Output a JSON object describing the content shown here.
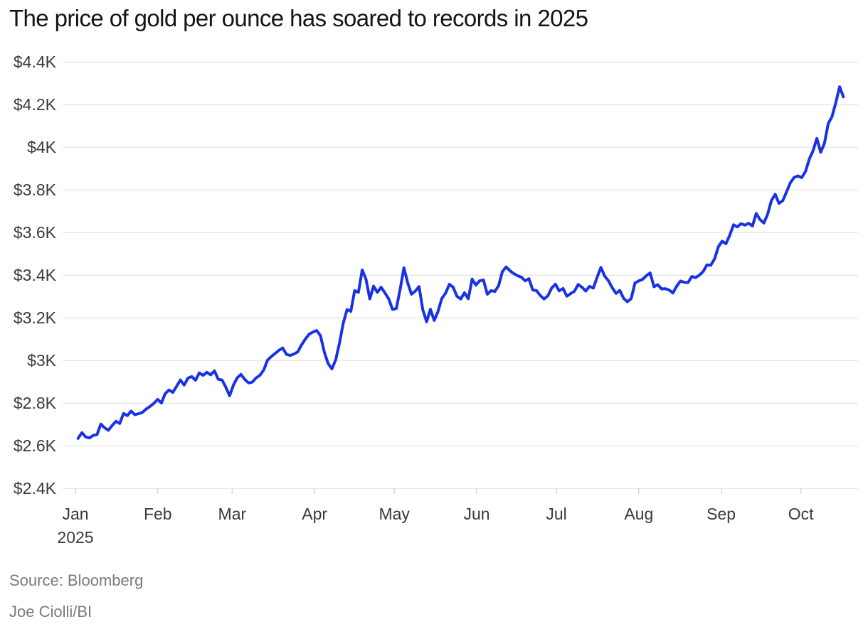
{
  "chart_data": {
    "type": "line",
    "title": "The price of gold per ounce has soared to records in 2025",
    "series": [
      {
        "name": "Gold price per ounce (USD)",
        "values": [
          2634,
          2661,
          2641,
          2636,
          2648,
          2652,
          2701,
          2684,
          2672,
          2695,
          2714,
          2704,
          2751,
          2741,
          2762,
          2745,
          2750,
          2756,
          2772,
          2784,
          2798,
          2817,
          2800,
          2844,
          2861,
          2850,
          2878,
          2908,
          2884,
          2917,
          2924,
          2907,
          2941,
          2930,
          2944,
          2932,
          2951,
          2911,
          2908,
          2874,
          2834,
          2884,
          2918,
          2934,
          2911,
          2894,
          2898,
          2918,
          2930,
          2955,
          3001,
          3018,
          3032,
          3047,
          3058,
          3028,
          3023,
          3030,
          3040,
          3073,
          3100,
          3123,
          3133,
          3140,
          3115,
          3038,
          2985,
          2960,
          3002,
          3082,
          3175,
          3238,
          3230,
          3327,
          3319,
          3424,
          3381,
          3288,
          3348,
          3319,
          3343,
          3316,
          3288,
          3239,
          3243,
          3333,
          3434,
          3364,
          3310,
          3325,
          3346,
          3237,
          3181,
          3240,
          3187,
          3229,
          3290,
          3315,
          3357,
          3343,
          3301,
          3288,
          3317,
          3289,
          3381,
          3353,
          3373,
          3377,
          3310,
          3327,
          3323,
          3350,
          3417,
          3438,
          3420,
          3407,
          3397,
          3390,
          3373,
          3383,
          3330,
          3327,
          3304,
          3288,
          3303,
          3339,
          3357,
          3326,
          3337,
          3301,
          3313,
          3324,
          3356,
          3343,
          3325,
          3347,
          3339,
          3390,
          3436,
          3395,
          3373,
          3340,
          3314,
          3328,
          3290,
          3275,
          3290,
          3363,
          3373,
          3380,
          3397,
          3410,
          3345,
          3355,
          3335,
          3336,
          3330,
          3316,
          3348,
          3372,
          3366,
          3365,
          3393,
          3388,
          3400,
          3417,
          3448,
          3446,
          3476,
          3533,
          3559,
          3547,
          3587,
          3636,
          3626,
          3641,
          3634,
          3643,
          3630,
          3689,
          3660,
          3644,
          3685,
          3749,
          3779,
          3736,
          3749,
          3790,
          3833,
          3858,
          3865,
          3857,
          3886,
          3944,
          3983,
          4041,
          3976,
          4018,
          4110,
          4143,
          4209,
          4283,
          4236
        ]
      }
    ],
    "ylim": [
      2400,
      4400
    ],
    "y_ticks": [
      {
        "value": 2400,
        "label": "$2.4K"
      },
      {
        "value": 2600,
        "label": "$2.6K"
      },
      {
        "value": 2800,
        "label": "$2.8K"
      },
      {
        "value": 3000,
        "label": "$3K"
      },
      {
        "value": 3200,
        "label": "$3.2K"
      },
      {
        "value": 3400,
        "label": "$3.4K"
      },
      {
        "value": 3600,
        "label": "$3.6K"
      },
      {
        "value": 3800,
        "label": "$3.8K"
      },
      {
        "value": 4000,
        "label": "$4K"
      },
      {
        "value": 4200,
        "label": "$4.2K"
      },
      {
        "value": 4400,
        "label": "$4.4K"
      }
    ],
    "x_ticks": [
      {
        "label": "Jan",
        "sublabel": "2025",
        "day": 0
      },
      {
        "label": "Feb",
        "day": 31
      },
      {
        "label": "Mar",
        "day": 59
      },
      {
        "label": "Apr",
        "day": 90
      },
      {
        "label": "May",
        "day": 120
      },
      {
        "label": "Jun",
        "day": 151
      },
      {
        "label": "Jul",
        "day": 181
      },
      {
        "label": "Aug",
        "day": 212
      },
      {
        "label": "Sep",
        "day": 243
      },
      {
        "label": "Oct",
        "day": 273
      }
    ],
    "x_span_days": [
      1,
      289
    ],
    "grid": true,
    "legend": false,
    "colors": {
      "line": "#1932e6",
      "grid": "#e8e8e8",
      "axis_tick": "#d6d6d6",
      "axis_text": "#3a3a3a",
      "title": "#141414",
      "footer_text": "#7a7a7a",
      "background": "#ffffff"
    }
  },
  "footer": {
    "source": "Source: Bloomberg",
    "credit": "Joe Ciolli/BI"
  }
}
